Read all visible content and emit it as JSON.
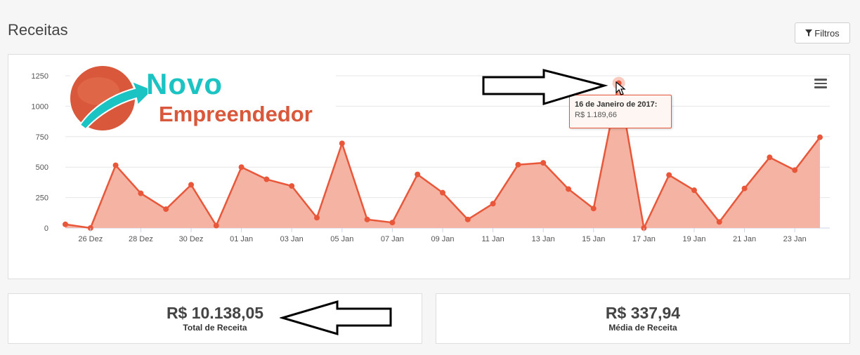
{
  "page": {
    "title": "Receitas"
  },
  "toolbar": {
    "filter_label": "Filtros"
  },
  "logo": {
    "line1": "Novo",
    "line2": "Empreendedor"
  },
  "tooltip": {
    "title": "16 de Janeiro de 2017:",
    "value": "R$ 1.189,66"
  },
  "stats": {
    "total": {
      "value": "R$ 10.138,05",
      "label": "Total de Receita"
    },
    "average": {
      "value": "R$ 337,94",
      "label": "Média de Receita"
    }
  },
  "colors": {
    "series": "#e8573a",
    "area": "#f5b4a3",
    "highlight": "#f8c5b8"
  },
  "chart_data": {
    "type": "area",
    "x": [
      "25 Dez",
      "26 Dez",
      "27 Dez",
      "28 Dez",
      "29 Dez",
      "30 Dez",
      "31 Dez",
      "01 Jan",
      "02 Jan",
      "03 Jan",
      "04 Jan",
      "05 Jan",
      "06 Jan",
      "07 Jan",
      "08 Jan",
      "09 Jan",
      "10 Jan",
      "11 Jan",
      "12 Jan",
      "13 Jan",
      "14 Jan",
      "15 Jan",
      "16 Jan",
      "17 Jan",
      "18 Jan",
      "19 Jan",
      "20 Jan",
      "21 Jan",
      "22 Jan",
      "23 Jan",
      "24 Jan"
    ],
    "xticks": [
      "26 Dez",
      "28 Dez",
      "30 Dez",
      "01 Jan",
      "03 Jan",
      "05 Jan",
      "07 Jan",
      "09 Jan",
      "11 Jan",
      "13 Jan",
      "15 Jan",
      "17 Jan",
      "19 Jan",
      "21 Jan",
      "23 Jan"
    ],
    "yticks": [
      "0",
      "250",
      "500",
      "750",
      "1000",
      "1250"
    ],
    "ylim": [
      0,
      1250
    ],
    "values": [
      30,
      0,
      515,
      285,
      155,
      355,
      20,
      500,
      400,
      345,
      85,
      695,
      70,
      45,
      440,
      290,
      70,
      200,
      520,
      535,
      320,
      160,
      1189.66,
      0,
      435,
      310,
      50,
      325,
      580,
      475,
      745
    ],
    "highlight_index": 22,
    "grid": true
  }
}
